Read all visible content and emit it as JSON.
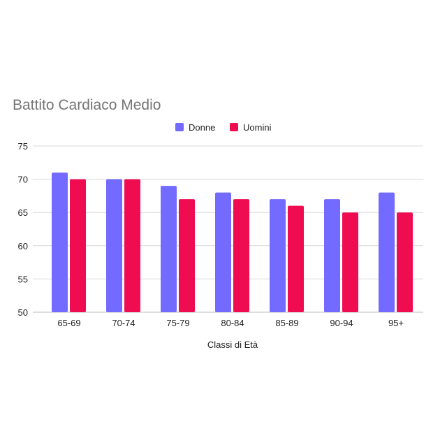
{
  "chart_data": {
    "type": "bar",
    "title": "Battito Cardiaco Medio",
    "xlabel": "Classi di Età",
    "ylabel": "",
    "categories": [
      "65-69",
      "70-74",
      "75-79",
      "80-84",
      "85-89",
      "90-94",
      "95+"
    ],
    "series": [
      {
        "name": "Donne",
        "color": "#736BFF",
        "values": [
          71,
          70,
          69,
          68,
          67,
          67,
          68
        ]
      },
      {
        "name": "Uomini",
        "color": "#F00C50",
        "values": [
          70,
          70,
          67,
          67,
          66,
          65,
          65
        ]
      }
    ],
    "ylim": [
      50,
      75
    ],
    "yticks": [
      "50",
      "55",
      "60",
      "65",
      "70",
      "75"
    ],
    "grid": true,
    "legend": "top"
  }
}
